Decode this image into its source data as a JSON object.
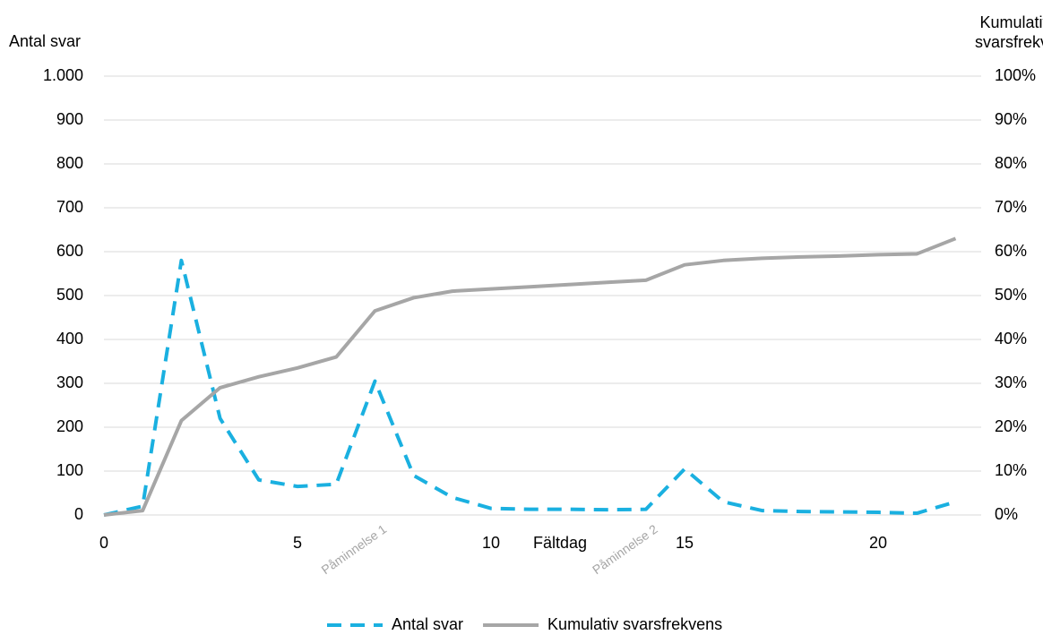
{
  "chart_data": {
    "type": "line",
    "x_label": "Fältdag",
    "y_label": "Antal svar",
    "y2_label": "Kumulativ svarsfrekvens",
    "x": [
      0,
      1,
      2,
      3,
      4,
      5,
      6,
      7,
      8,
      9,
      10,
      11,
      12,
      13,
      14,
      15,
      16,
      17,
      18,
      19,
      20,
      21,
      22
    ],
    "xlim": [
      0,
      22.66
    ],
    "xticks": [
      0,
      5,
      10,
      15,
      20
    ],
    "ylim": [
      0,
      1000
    ],
    "yticks": [
      0,
      100,
      200,
      300,
      400,
      500,
      600,
      700,
      800,
      900,
      {
        "value": 1000,
        "label": "1.000"
      }
    ],
    "y2lim": [
      0,
      100
    ],
    "y2ticks": [
      {
        "value": 0,
        "label": "0%"
      },
      {
        "value": 10,
        "label": "10%"
      },
      {
        "value": 20,
        "label": "20%"
      },
      {
        "value": 30,
        "label": "30%"
      },
      {
        "value": 40,
        "label": "40%"
      },
      {
        "value": 50,
        "label": "50%"
      },
      {
        "value": 60,
        "label": "60%"
      },
      {
        "value": 70,
        "label": "70%"
      },
      {
        "value": 80,
        "label": "80%"
      },
      {
        "value": 90,
        "label": "90%"
      },
      {
        "value": 100,
        "label": "100%"
      }
    ],
    "grid": true,
    "legend": "bottom",
    "series": [
      {
        "name": "Antal svar",
        "color": "#1ab0e0",
        "dashed": true,
        "values": [
          0,
          20,
          580,
          220,
          80,
          65,
          70,
          305,
          90,
          40,
          15,
          13,
          13,
          12,
          13,
          105,
          30,
          10,
          8,
          7,
          6,
          4,
          30
        ]
      },
      {
        "name": "Kumulativ svarsfrekvens",
        "color": "#a6a6a6",
        "dashed": false,
        "axis": "y2",
        "values": [
          0,
          1,
          21.5,
          29,
          31.5,
          33.5,
          36,
          46.5,
          49.5,
          51,
          51.5,
          52,
          52.5,
          53,
          53.5,
          57,
          58,
          58.5,
          58.8,
          59,
          59.3,
          59.5,
          63
        ]
      }
    ],
    "annotations": [
      {
        "text": "Påminnelse 1",
        "x": 7
      },
      {
        "text": "Påminnelse 2",
        "x": 14
      }
    ]
  }
}
